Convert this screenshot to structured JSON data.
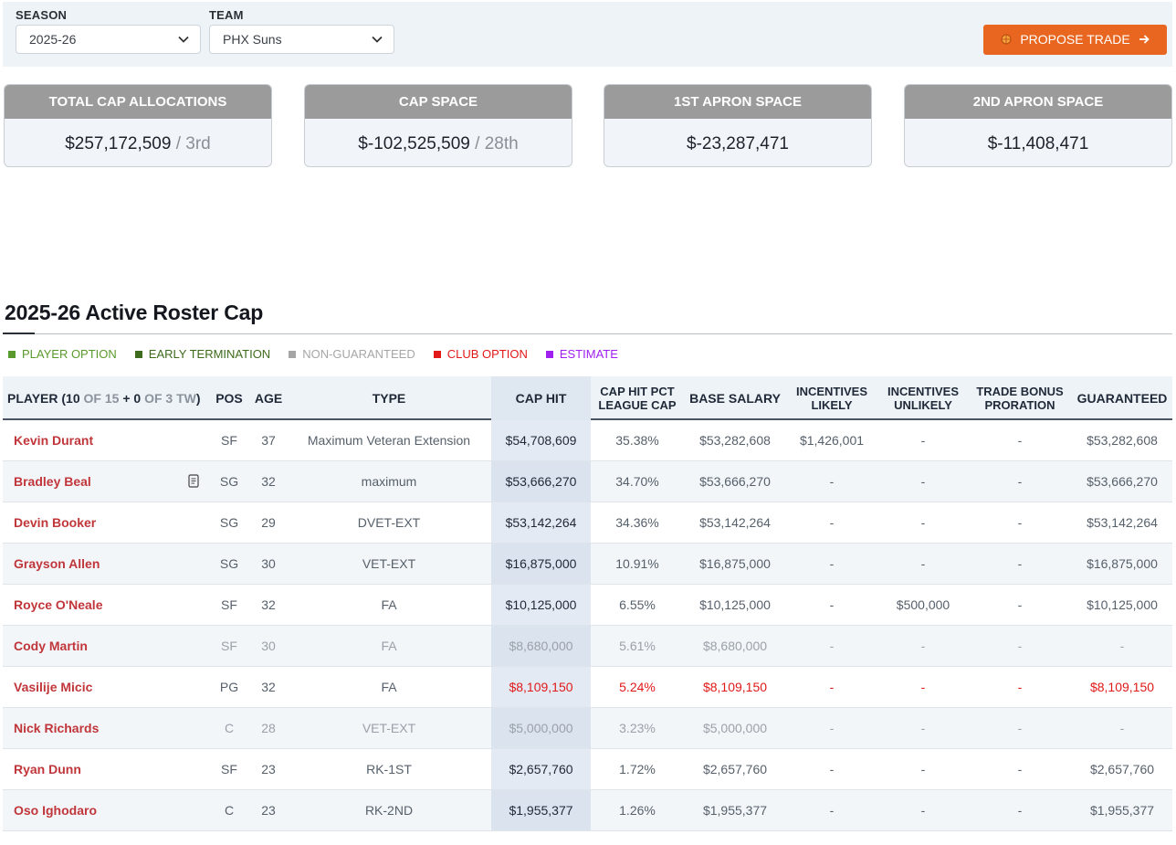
{
  "filters": {
    "season_label": "SEASON",
    "season_value": "2025-26",
    "team_label": "TEAM",
    "team_value": "PHX Suns",
    "propose_trade": "PROPOSE TRADE"
  },
  "cards": [
    {
      "title": "TOTAL CAP ALLOCATIONS",
      "value": "$257,172,509",
      "rank": "/ 3rd"
    },
    {
      "title": "CAP SPACE",
      "value": "$-102,525,509",
      "rank": "/ 28th"
    },
    {
      "title": "1ST APRON SPACE",
      "value": "$-23,287,471",
      "rank": ""
    },
    {
      "title": "2ND APRON SPACE",
      "value": "$-11,408,471",
      "rank": ""
    }
  ],
  "section_title": "2025-26 Active Roster Cap",
  "legend": [
    {
      "label": "PLAYER OPTION",
      "color": "#5a9a2c"
    },
    {
      "label": "EARLY TERMINATION",
      "color": "#3e6b1c"
    },
    {
      "label": "NON-GUARANTEED",
      "color": "#a6a6a6"
    },
    {
      "label": "CLUB OPTION",
      "color": "#e11919"
    },
    {
      "label": "ESTIMATE",
      "color": "#a020f0"
    }
  ],
  "table": {
    "player_header": {
      "a": "PLAYER (10",
      "b": "OF 15",
      "c": "+ 0",
      "d": "OF 3 TW",
      "e": ")"
    },
    "headers": {
      "pos": "POS",
      "age": "AGE",
      "type": "TYPE",
      "cap_hit": "CAP HIT",
      "pct_1": "CAP HIT PCT",
      "pct_2": "LEAGUE CAP",
      "base": "BASE SALARY",
      "inc_l1": "INCENTIVES",
      "inc_l2": "LIKELY",
      "inc_u1": "INCENTIVES",
      "inc_u2": "UNLIKELY",
      "tb1": "TRADE BONUS",
      "tb2": "PRORATION",
      "guaranteed": "GUARANTEED"
    },
    "rows": [
      {
        "player": "Kevin Durant",
        "pos": "SF",
        "age": "37",
        "type": "Maximum Veteran Extension",
        "cap_hit": "$54,708,609",
        "pct": "35.38%",
        "base": "$53,282,608",
        "inc_likely": "$1,426,001",
        "inc_unlikely": "-",
        "trade_bonus": "-",
        "guaranteed": "$53,282,608",
        "status": "normal"
      },
      {
        "player": "Bradley Beal",
        "pos": "SG",
        "age": "32",
        "type": "maximum",
        "cap_hit": "$53,666,270",
        "pct": "34.70%",
        "base": "$53,666,270",
        "inc_likely": "-",
        "inc_unlikely": "-",
        "trade_bonus": "-",
        "guaranteed": "$53,666,270",
        "status": "normal",
        "note": true
      },
      {
        "player": "Devin Booker",
        "pos": "SG",
        "age": "29",
        "type": "DVET-EXT",
        "cap_hit": "$53,142,264",
        "pct": "34.36%",
        "base": "$53,142,264",
        "inc_likely": "-",
        "inc_unlikely": "-",
        "trade_bonus": "-",
        "guaranteed": "$53,142,264",
        "status": "normal"
      },
      {
        "player": "Grayson Allen",
        "pos": "SG",
        "age": "30",
        "type": "VET-EXT",
        "cap_hit": "$16,875,000",
        "pct": "10.91%",
        "base": "$16,875,000",
        "inc_likely": "-",
        "inc_unlikely": "-",
        "trade_bonus": "-",
        "guaranteed": "$16,875,000",
        "status": "normal"
      },
      {
        "player": "Royce O'Neale",
        "pos": "SF",
        "age": "32",
        "type": "FA",
        "cap_hit": "$10,125,000",
        "pct": "6.55%",
        "base": "$10,125,000",
        "inc_likely": "-",
        "inc_unlikely": "$500,000",
        "trade_bonus": "-",
        "guaranteed": "$10,125,000",
        "status": "normal"
      },
      {
        "player": "Cody Martin",
        "pos": "SF",
        "age": "30",
        "type": "FA",
        "cap_hit": "$8,680,000",
        "pct": "5.61%",
        "base": "$8,680,000",
        "inc_likely": "-",
        "inc_unlikely": "-",
        "trade_bonus": "-",
        "guaranteed": "-",
        "status": "ng"
      },
      {
        "player": "Vasilije Micic",
        "pos": "PG",
        "age": "32",
        "type": "FA",
        "cap_hit": "$8,109,150",
        "pct": "5.24%",
        "base": "$8,109,150",
        "inc_likely": "-",
        "inc_unlikely": "-",
        "trade_bonus": "-",
        "guaranteed": "$8,109,150",
        "status": "club"
      },
      {
        "player": "Nick Richards",
        "pos": "C",
        "age": "28",
        "type": "VET-EXT",
        "cap_hit": "$5,000,000",
        "pct": "3.23%",
        "base": "$5,000,000",
        "inc_likely": "-",
        "inc_unlikely": "-",
        "trade_bonus": "-",
        "guaranteed": "-",
        "status": "ng"
      },
      {
        "player": "Ryan Dunn",
        "pos": "SF",
        "age": "23",
        "type": "RK-1ST",
        "cap_hit": "$2,657,760",
        "pct": "1.72%",
        "base": "$2,657,760",
        "inc_likely": "-",
        "inc_unlikely": "-",
        "trade_bonus": "-",
        "guaranteed": "$2,657,760",
        "status": "normal"
      },
      {
        "player": "Oso Ighodaro",
        "pos": "C",
        "age": "23",
        "type": "RK-2ND",
        "cap_hit": "$1,955,377",
        "pct": "1.26%",
        "base": "$1,955,377",
        "inc_likely": "-",
        "inc_unlikely": "-",
        "trade_bonus": "-",
        "guaranteed": "$1,955,377",
        "status": "normal"
      }
    ]
  }
}
